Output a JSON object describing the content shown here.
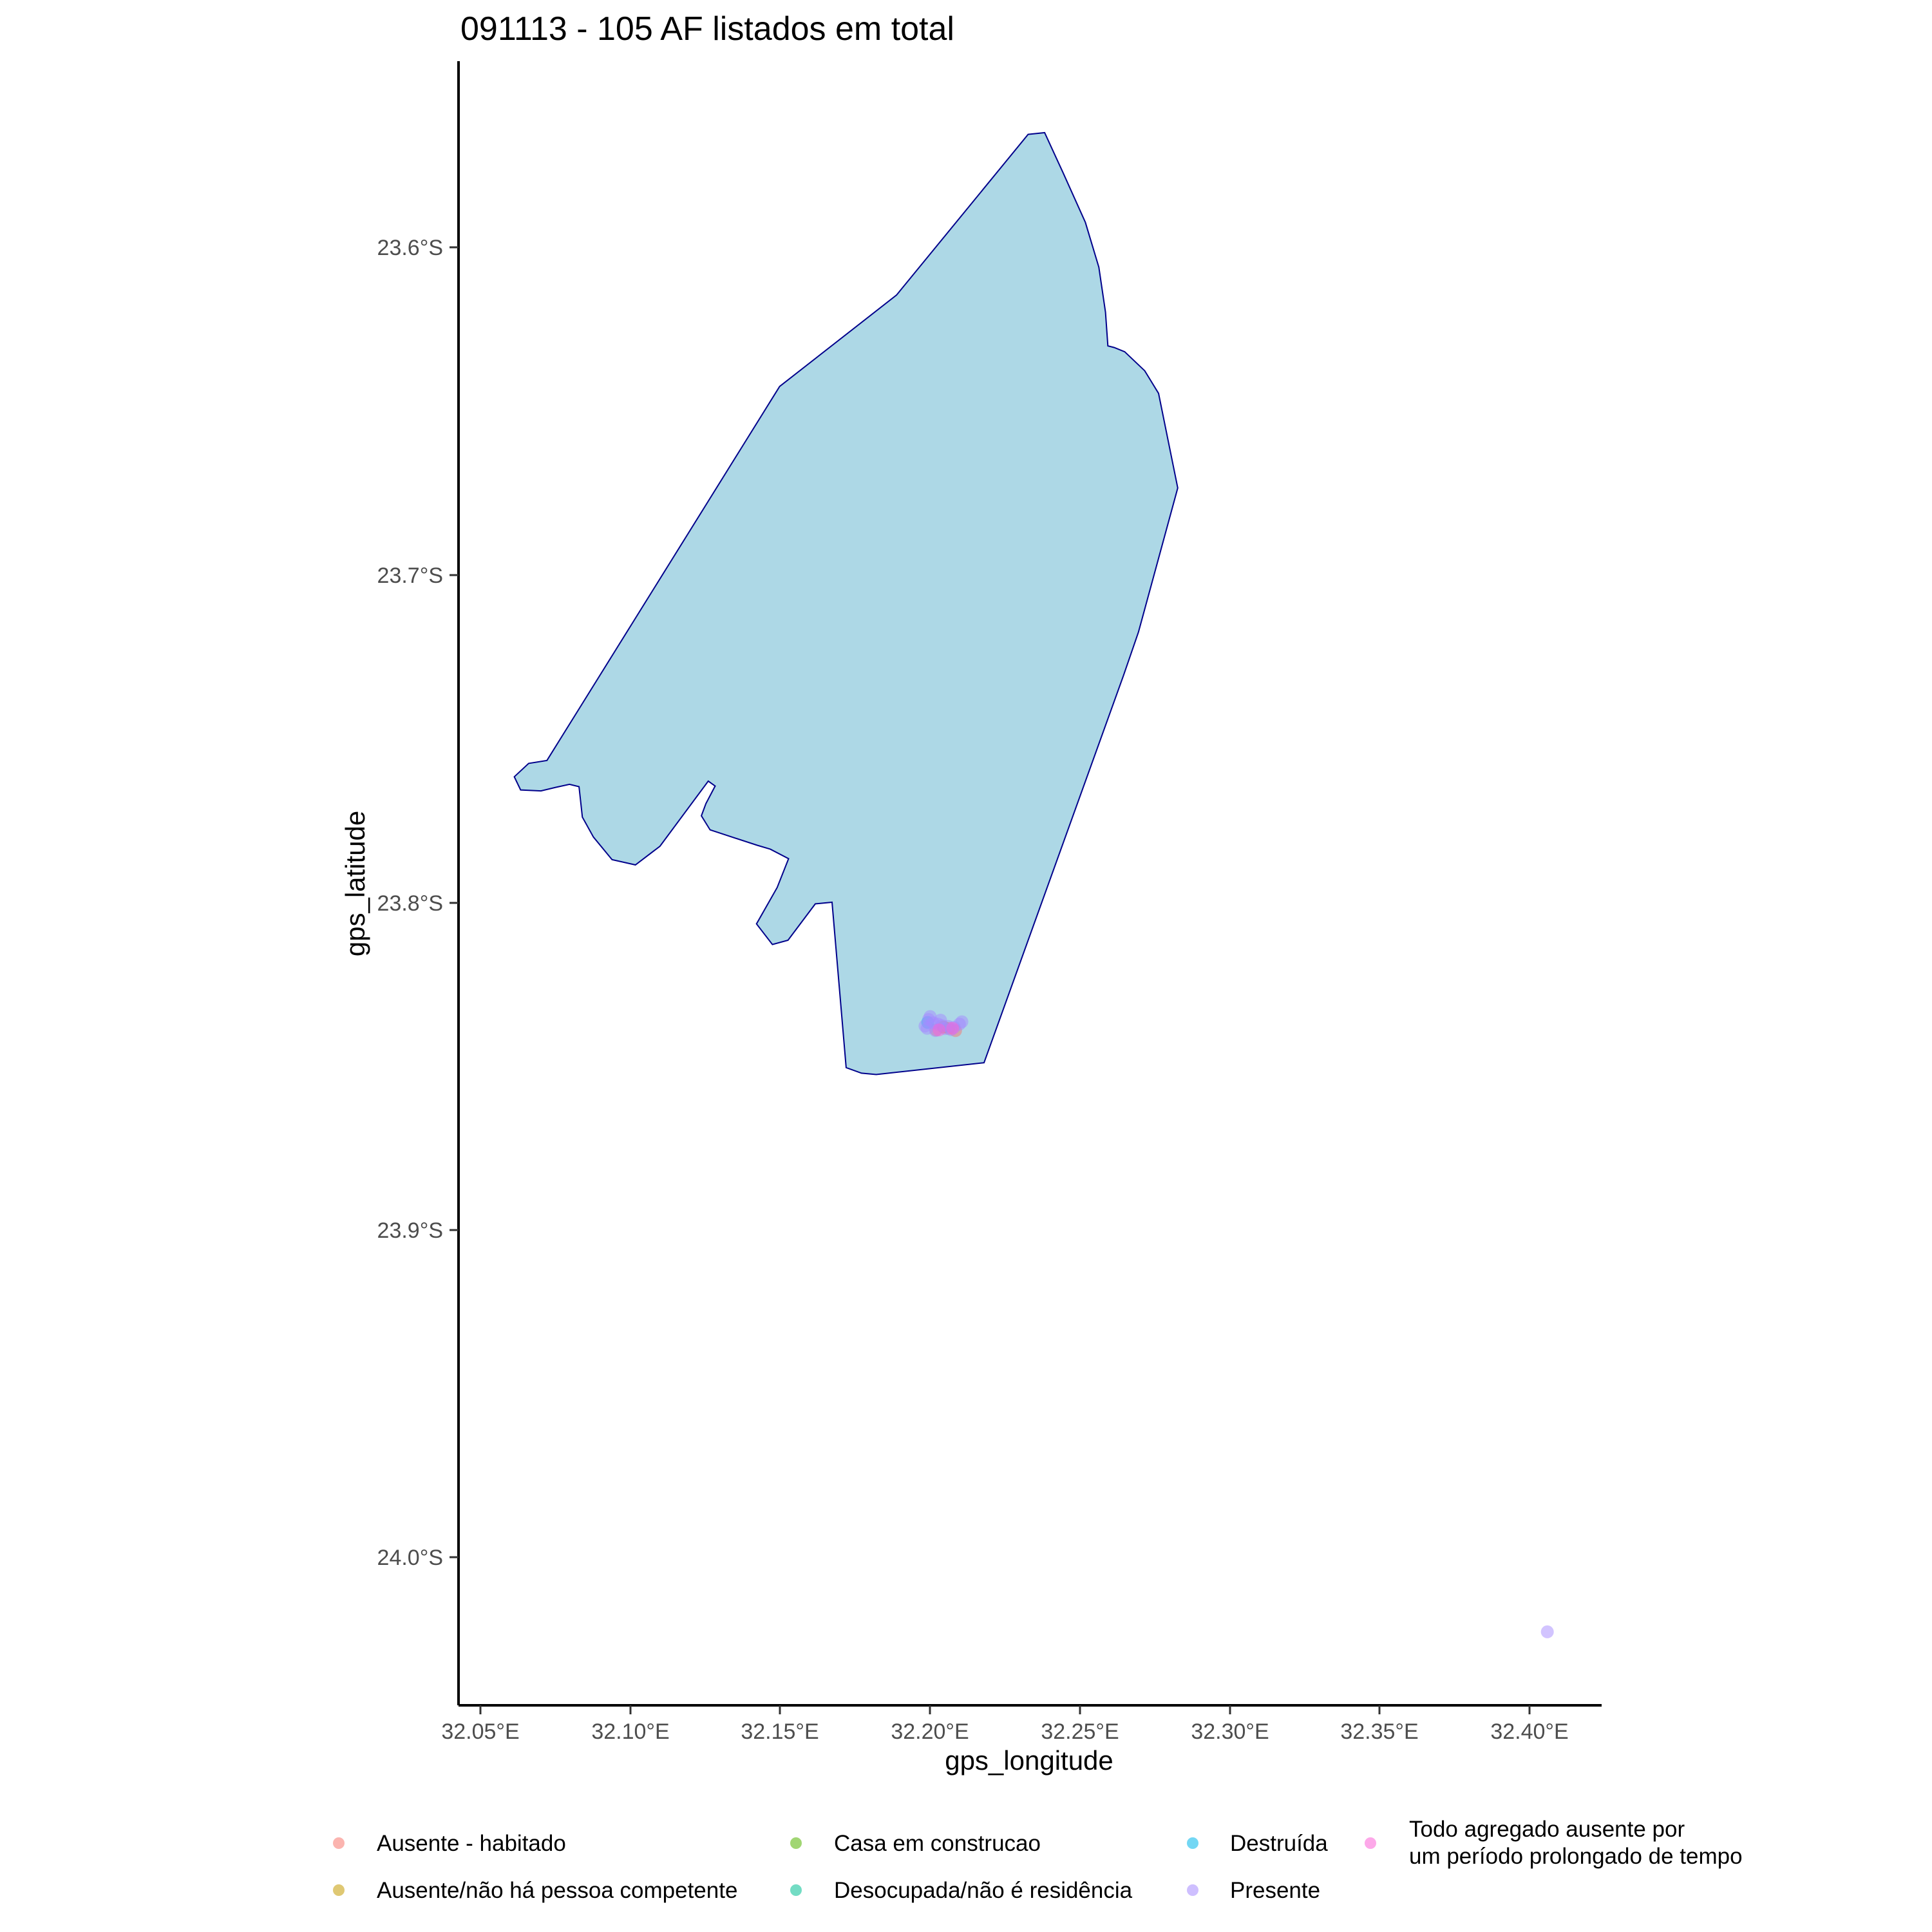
{
  "map": {
    "title": "091113 - 105 AF listados em total",
    "x_axis_title": "gps_longitude",
    "y_axis_title": "gps_latitude",
    "x_ticks": [
      "32.05°E",
      "32.10°E",
      "32.15°E",
      "32.20°E",
      "32.25°E",
      "32.30°E",
      "32.35°E",
      "32.40°E"
    ],
    "y_ticks": [
      "23.6°S",
      "23.7°S",
      "23.8°S",
      "23.9°S",
      "24.0°S"
    ],
    "colors": {
      "polygon_fill": "#add8e6",
      "polygon_stroke": "#00008b",
      "axis": "#000000"
    },
    "legend": {
      "position": "bottom",
      "items": [
        {
          "label": "Ausente - habitado",
          "color": "#F8766D"
        },
        {
          "label": "Ausente/não há pessoa competente",
          "color": "#C49A00"
        },
        {
          "label": "Casa em construcao",
          "color": "#53B400"
        },
        {
          "label": "Desocupada/não é residência",
          "color": "#00C094"
        },
        {
          "label": "Destruída",
          "color": "#00B6EB"
        },
        {
          "label": "Presente",
          "color": "#A58AFF"
        },
        {
          "label_line1": "Todo agregado ausente por",
          "label_line2": "um período prolongado de tempo",
          "color": "#FB61D7"
        }
      ]
    }
  },
  "chart_data": {
    "type": "scatter",
    "title": "091113 - 105 AF listados em total",
    "xlabel": "gps_longitude",
    "ylabel": "gps_latitude",
    "xlim": [
      32.044,
      32.425
    ],
    "ylim": [
      -24.045,
      -23.545
    ],
    "polygon": [
      [
        32.2327,
        -23.5655
      ],
      [
        32.2382,
        -23.565
      ],
      [
        32.2444,
        -23.5773
      ],
      [
        32.2518,
        -23.5924
      ],
      [
        32.2563,
        -23.6061
      ],
      [
        32.2585,
        -23.6198
      ],
      [
        32.2593,
        -23.6301
      ],
      [
        32.2614,
        -23.6306
      ],
      [
        32.2649,
        -23.6319
      ],
      [
        32.2716,
        -23.6377
      ],
      [
        32.2762,
        -23.6446
      ],
      [
        32.2826,
        -23.6735
      ],
      [
        32.2695,
        -23.7175
      ],
      [
        32.2645,
        -23.7308
      ],
      [
        32.218,
        -23.849
      ],
      [
        32.182,
        -23.8526
      ],
      [
        32.1771,
        -23.8522
      ],
      [
        32.172,
        -23.8505
      ],
      [
        32.1673,
        -23.8
      ],
      [
        32.1617,
        -23.8005
      ],
      [
        32.1526,
        -23.8116
      ],
      [
        32.1474,
        -23.8129
      ],
      [
        32.1421,
        -23.8066
      ],
      [
        32.149,
        -23.7955
      ],
      [
        32.1528,
        -23.7867
      ],
      [
        32.1467,
        -23.7838
      ],
      [
        32.1423,
        -23.7826
      ],
      [
        32.1266,
        -23.7779
      ],
      [
        32.1237,
        -23.7736
      ],
      [
        32.1252,
        -23.7699
      ],
      [
        32.1283,
        -23.7645
      ],
      [
        32.126,
        -23.763
      ],
      [
        32.1099,
        -23.7829
      ],
      [
        32.1017,
        -23.7886
      ],
      [
        32.0939,
        -23.787
      ],
      [
        32.0877,
        -23.7801
      ],
      [
        32.084,
        -23.774
      ],
      [
        32.0829,
        -23.7647
      ],
      [
        32.0797,
        -23.764
      ],
      [
        32.0752,
        -23.7649
      ],
      [
        32.0702,
        -23.766
      ],
      [
        32.0634,
        -23.7657
      ],
      [
        32.0613,
        -23.7617
      ],
      [
        32.0661,
        -23.7576
      ],
      [
        32.0722,
        -23.7567
      ],
      [
        32.1498,
        -23.6425
      ],
      [
        32.1888,
        -23.6146
      ],
      [
        32.2327,
        -23.5655
      ]
    ],
    "series": [
      {
        "name": "Ausente - habitado",
        "points": [
          [
            32.202,
            -23.839
          ],
          [
            32.2085,
            -23.8392
          ],
          [
            32.2062,
            -23.8385
          ]
        ]
      },
      {
        "name": "Ausente/não há pessoa competente",
        "points": [
          [
            32.2045,
            -23.8381
          ]
        ]
      },
      {
        "name": "Destruída",
        "points": [
          [
            32.1992,
            -23.8367
          ]
        ]
      },
      {
        "name": "Presente",
        "points": [
          [
            32.1983,
            -23.8378
          ],
          [
            32.1995,
            -23.8358
          ],
          [
            32.2,
            -23.8349
          ],
          [
            32.201,
            -23.8368
          ],
          [
            32.2018,
            -23.8392
          ],
          [
            32.2026,
            -23.8372
          ],
          [
            32.204,
            -23.8377
          ],
          [
            32.205,
            -23.8386
          ],
          [
            32.206,
            -23.8379
          ],
          [
            32.207,
            -23.8389
          ],
          [
            32.208,
            -23.8382
          ],
          [
            32.2098,
            -23.8372
          ],
          [
            32.2106,
            -23.8365
          ],
          [
            32.199,
            -23.8385
          ],
          [
            32.2035,
            -23.836
          ],
          [
            32.4059,
            -24.0228
          ]
        ]
      },
      {
        "name": "Todo agregado ausente por um período prolongado de tempo",
        "points": [
          [
            32.2075,
            -23.8385
          ],
          [
            32.203,
            -23.839
          ]
        ]
      }
    ]
  }
}
